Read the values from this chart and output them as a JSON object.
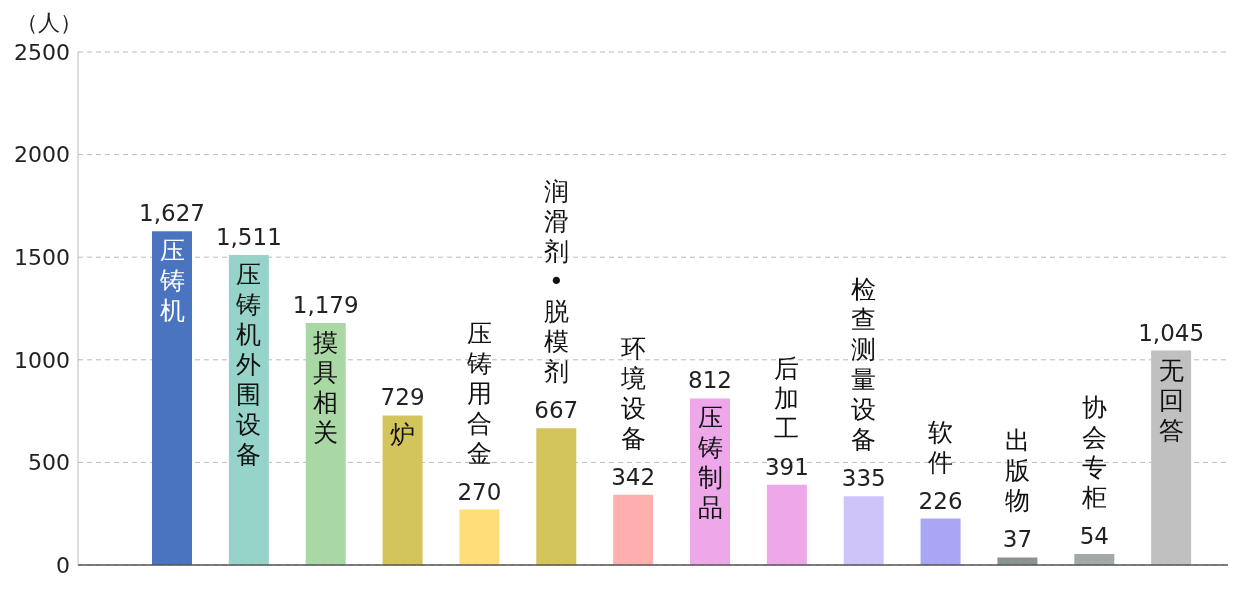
{
  "chart_data": {
    "type": "bar",
    "ylabel": "（人）",
    "categories": [
      "压铸机",
      "压铸机外围设备",
      "摸具相关",
      "炉",
      "压铸用合金",
      "润滑剂•脱模剂",
      "环境设备",
      "压铸制品",
      "后加工",
      "检查测量设备",
      "软件",
      "出版物",
      "协会专柜",
      "无回答"
    ],
    "values": [
      1627,
      1511,
      1179,
      729,
      270,
      667,
      342,
      812,
      391,
      335,
      226,
      37,
      54,
      1045
    ],
    "colors": [
      "#4a74c0",
      "#96d3c8",
      "#a9d8a4",
      "#d3c45c",
      "#ffde7a",
      "#d3c45c",
      "#ffafad",
      "#eea8ea",
      "#eea8ea",
      "#cfc4fa",
      "#a8a6f5",
      "#8b938f",
      "#a3a9a6",
      "#c0c0c0"
    ],
    "value_labels": [
      "1,627",
      "1,511",
      "1,179",
      "729",
      "270",
      "667",
      "342",
      "812",
      "391",
      "335",
      "226",
      "37",
      "54",
      "1,045"
    ],
    "ylim": [
      0,
      2500
    ],
    "yticks": [
      0,
      500,
      1000,
      1500,
      2000,
      2500
    ],
    "grid": "y"
  }
}
